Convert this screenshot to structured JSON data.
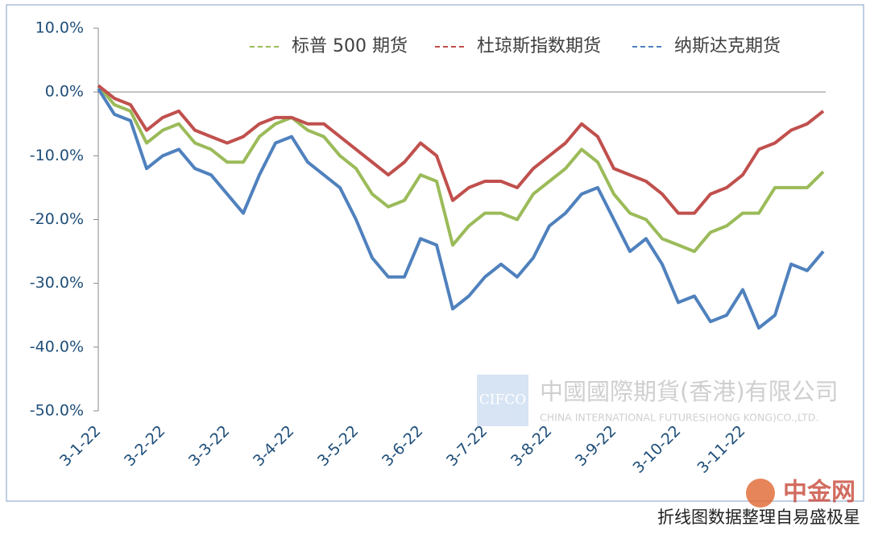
{
  "chart_data": {
    "type": "line",
    "categories": [
      "3-1-22",
      null,
      null,
      null,
      "3-2-22",
      null,
      null,
      null,
      "3-3-22",
      null,
      null,
      null,
      "3-4-22",
      null,
      null,
      null,
      "3-5-22",
      null,
      null,
      null,
      "3-6-22",
      null,
      null,
      null,
      "3-7-22",
      null,
      null,
      null,
      "3-8-22",
      null,
      null,
      null,
      "3-9-22",
      null,
      null,
      null,
      "3-10-22",
      null,
      null,
      null,
      "3-11-22",
      null,
      null,
      null,
      null,
      null
    ],
    "series": [
      {
        "name": "标普 500 期货",
        "color": "#9bbb59",
        "values": [
          1,
          -2,
          -3,
          -8,
          -6,
          -5,
          -8,
          -9,
          -11,
          -11,
          -7,
          -5,
          -4,
          -6,
          -7,
          -10,
          -12,
          -16,
          -18,
          -17,
          -13,
          -14,
          -24,
          -21,
          -19,
          -19,
          -20,
          -16,
          -14,
          -12,
          -9,
          -11,
          -16,
          -19,
          -20,
          -23,
          -24,
          -25,
          -22,
          -21,
          -19,
          -19,
          -15,
          -15,
          -15,
          -12.5
        ]
      },
      {
        "name": "杜琼斯指数期货",
        "color": "#c0504d",
        "values": [
          1,
          -1,
          -2,
          -6,
          -4,
          -3,
          -6,
          -7,
          -8,
          -7,
          -5,
          -4,
          -4,
          -5,
          -5,
          -7,
          -9,
          -11,
          -13,
          -11,
          -8,
          -10,
          -17,
          -15,
          -14,
          -14,
          -15,
          -12,
          -10,
          -8,
          -5,
          -7,
          -12,
          -13,
          -14,
          -16,
          -19,
          -19,
          -16,
          -15,
          -13,
          -9,
          -8,
          -6,
          -5,
          -3
        ]
      },
      {
        "name": "纳斯达克期货",
        "color": "#4f81bd",
        "values": [
          0.5,
          -3.5,
          -4.5,
          -12,
          -10,
          -9,
          -12,
          -13,
          -16,
          -19,
          -13,
          -8,
          -7,
          -11,
          -13,
          -15,
          -20,
          -26,
          -29,
          -29,
          -23,
          -24,
          -34,
          -32,
          -29,
          -27,
          -29,
          -26,
          -21,
          -19,
          -16,
          -15,
          -20,
          -25,
          -23,
          -27,
          -33,
          -32,
          -36,
          -35,
          -31,
          -37,
          -35,
          -27,
          -28,
          -25
        ]
      }
    ],
    "ylim": [
      -50,
      10
    ],
    "yticks": [
      {
        "value": 10,
        "label": "10.0%"
      },
      {
        "value": 0,
        "label": "0.0%"
      },
      {
        "value": -10,
        "label": "-10.0%"
      },
      {
        "value": -20,
        "label": "-20.0%"
      },
      {
        "value": -30,
        "label": "-30.0%"
      },
      {
        "value": -40,
        "label": "-40.0%"
      },
      {
        "value": -50,
        "label": "-50.0%"
      }
    ],
    "legend_position": "top",
    "watermark": {
      "logo": "CIFCO",
      "name": "中國國際期貨(香港)有限公司",
      "name_en": "CHINA INTERNATIONAL FUTURES(HONG KONG)CO.,LTD.",
      "site": "中金网"
    },
    "note": "折线图数据整理自易盛极星"
  }
}
